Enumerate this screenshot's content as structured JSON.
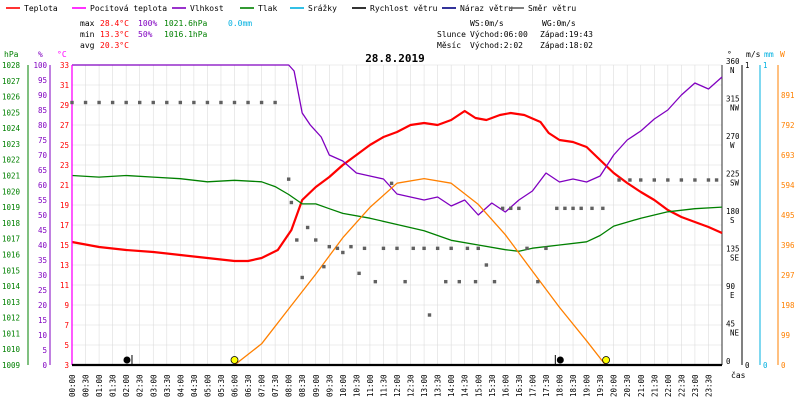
{
  "legend": [
    {
      "label": "Teplota",
      "color": "#ff0000"
    },
    {
      "label": "Pocitová teplota",
      "color": "#ff00ff"
    },
    {
      "label": "Vlhkost",
      "color": "#8000c0"
    },
    {
      "label": "Tlak",
      "color": "#008000"
    },
    {
      "label": "Srážky",
      "color": "#00b0e0"
    },
    {
      "label": "Rychlost větru",
      "color": "#000000"
    },
    {
      "label": "Náraz větru",
      "color": "#000080"
    },
    {
      "label": "Směr větru",
      "color": "#606060"
    }
  ],
  "stats": {
    "max": {
      "label": "max",
      "temp": "28.4°C",
      "hum": "100%",
      "press": "1021.6hPa",
      "rain": "0.0mm"
    },
    "min": {
      "label": "min",
      "temp": "13.3°C",
      "hum": "50%",
      "press": "1016.1hPa"
    },
    "avg": {
      "label": "avg",
      "temp": "20.3°C"
    }
  },
  "info": {
    "ws": "WS:0m/s",
    "wg": "WG:0m/s",
    "sun_label": "Slunce",
    "sun_rise": "Východ:06:00",
    "sun_set": "Západ:19:43",
    "moon_label": "Měsíc",
    "moon_rise": "Východ:2:02",
    "moon_set": "Západ:18:02"
  },
  "title": "28.8.2019",
  "units": {
    "press": "hPa",
    "hum": "%",
    "temp": "°C",
    "dir": "°",
    "wind": "m/s",
    "rain": "mm",
    "solar": "W",
    "time": "čas"
  },
  "colors": {
    "temp": "#ff0000",
    "feels": "#ff00ff",
    "hum": "#8000c0",
    "press": "#008000",
    "rain": "#00b0e0",
    "wind": "#000000",
    "dir": "#606060",
    "solar": "#ff8000",
    "grid": "#dcdcdc",
    "sun": "#ffff00"
  },
  "axes": {
    "pressure": {
      "min": 1009,
      "max": 1028,
      "ticks": [
        1009,
        1010,
        1011,
        1012,
        1013,
        1014,
        1015,
        1016,
        1017,
        1018,
        1019,
        1020,
        1021,
        1022,
        1023,
        1024,
        1025,
        1026,
        1027,
        1028
      ]
    },
    "humidity": {
      "min": 0,
      "max": 100,
      "ticks": [
        0,
        5,
        10,
        15,
        20,
        25,
        30,
        35,
        40,
        45,
        50,
        55,
        60,
        65,
        70,
        75,
        80,
        85,
        90,
        95,
        100
      ]
    },
    "temperature": {
      "min": 3,
      "max": 33,
      "ticks": [
        3,
        5,
        7,
        9,
        11,
        13,
        15,
        17,
        19,
        21,
        23,
        25,
        27,
        29,
        31,
        33
      ]
    },
    "direction": {
      "min": 0,
      "max": 360,
      "ticks": [
        {
          "v": 0,
          "l": "0"
        },
        {
          "v": 45,
          "l": "45"
        },
        {
          "v": 90,
          "l": "90"
        },
        {
          "v": 135,
          "l": "135"
        },
        {
          "v": 180,
          "l": "180"
        },
        {
          "v": 225,
          "l": "225"
        },
        {
          "v": 270,
          "l": "270"
        },
        {
          "v": 315,
          "l": "315"
        },
        {
          "v": 360,
          "l": "360"
        }
      ],
      "compass": [
        {
          "v": 45,
          "l": "NE"
        },
        {
          "v": 90,
          "l": "E"
        },
        {
          "v": 135,
          "l": "SE"
        },
        {
          "v": 180,
          "l": "S"
        },
        {
          "v": 225,
          "l": "SW"
        },
        {
          "v": 270,
          "l": "W"
        },
        {
          "v": 315,
          "l": "NW"
        },
        {
          "v": 360,
          "l": "N"
        }
      ]
    },
    "wind": {
      "min": 0,
      "max": 1,
      "ticks": [
        0,
        1
      ]
    },
    "rain": {
      "min": 0,
      "max": 1,
      "ticks": [
        0,
        1
      ]
    },
    "solar": {
      "min": 0,
      "max": 990,
      "ticks": [
        0,
        99,
        198,
        297,
        396,
        495,
        594,
        693,
        792,
        891
      ]
    },
    "x_labels": [
      "00:00",
      "00:30",
      "01:00",
      "01:30",
      "02:00",
      "02:30",
      "03:00",
      "03:30",
      "04:00",
      "04:30",
      "05:00",
      "05:30",
      "06:00",
      "06:30",
      "07:00",
      "07:30",
      "08:00",
      "08:30",
      "09:00",
      "09:30",
      "10:00",
      "10:30",
      "11:00",
      "11:30",
      "12:00",
      "12:30",
      "13:00",
      "13:30",
      "14:00",
      "14:30",
      "15:00",
      "15:30",
      "16:00",
      "16:30",
      "17:00",
      "17:30",
      "18:00",
      "18:30",
      "19:00",
      "19:30",
      "20:00",
      "20:30",
      "21:00",
      "21:30",
      "22:00",
      "22:30",
      "23:00",
      "23:30"
    ]
  },
  "chart_data": {
    "type": "line",
    "title": "28.8.2019",
    "x_unit": "hours",
    "series": [
      {
        "name": "Teplota",
        "axis": "temperature",
        "points": [
          [
            0,
            15.3
          ],
          [
            1,
            14.8
          ],
          [
            2,
            14.5
          ],
          [
            3,
            14.3
          ],
          [
            4,
            14.0
          ],
          [
            5,
            13.7
          ],
          [
            6,
            13.4
          ],
          [
            6.5,
            13.4
          ],
          [
            7,
            13.7
          ],
          [
            7.6,
            14.5
          ],
          [
            8.1,
            16.5
          ],
          [
            8.5,
            19.5
          ],
          [
            9,
            20.8
          ],
          [
            9.5,
            21.8
          ],
          [
            10,
            23.0
          ],
          [
            10.5,
            24.0
          ],
          [
            11,
            25.0
          ],
          [
            11.5,
            25.8
          ],
          [
            12,
            26.3
          ],
          [
            12.5,
            27.0
          ],
          [
            13,
            27.2
          ],
          [
            13.5,
            27.0
          ],
          [
            14,
            27.5
          ],
          [
            14.5,
            28.4
          ],
          [
            14.9,
            27.7
          ],
          [
            15.3,
            27.5
          ],
          [
            15.8,
            28.0
          ],
          [
            16.2,
            28.2
          ],
          [
            16.7,
            28.0
          ],
          [
            17.3,
            27.3
          ],
          [
            17.6,
            26.2
          ],
          [
            18,
            25.5
          ],
          [
            18.5,
            25.3
          ],
          [
            19,
            24.8
          ],
          [
            19.5,
            23.5
          ],
          [
            20,
            22.2
          ],
          [
            20.5,
            21.2
          ],
          [
            21,
            20.3
          ],
          [
            21.5,
            19.5
          ],
          [
            22,
            18.5
          ],
          [
            22.5,
            17.8
          ],
          [
            23,
            17.3
          ],
          [
            23.5,
            16.8
          ],
          [
            24,
            16.2
          ]
        ]
      },
      {
        "name": "Vlhkost",
        "axis": "humidity",
        "points": [
          [
            0,
            100
          ],
          [
            8,
            100
          ],
          [
            8.2,
            98
          ],
          [
            8.5,
            84
          ],
          [
            8.8,
            80
          ],
          [
            9.2,
            76
          ],
          [
            9.5,
            70
          ],
          [
            10,
            68
          ],
          [
            10.5,
            64
          ],
          [
            11,
            63
          ],
          [
            11.5,
            62
          ],
          [
            12,
            57
          ],
          [
            12.5,
            56
          ],
          [
            13,
            55
          ],
          [
            13.5,
            56
          ],
          [
            14,
            53
          ],
          [
            14.5,
            55
          ],
          [
            15,
            50
          ],
          [
            15.5,
            54
          ],
          [
            16,
            51
          ],
          [
            16.5,
            55
          ],
          [
            17,
            58
          ],
          [
            17.5,
            64
          ],
          [
            18,
            61
          ],
          [
            18.5,
            62
          ],
          [
            19,
            61
          ],
          [
            19.5,
            63
          ],
          [
            20,
            70
          ],
          [
            20.5,
            75
          ],
          [
            21,
            78
          ],
          [
            21.5,
            82
          ],
          [
            22,
            85
          ],
          [
            22.5,
            90
          ],
          [
            23,
            94
          ],
          [
            23.5,
            92
          ],
          [
            24,
            96
          ]
        ]
      },
      {
        "name": "Tlak",
        "axis": "pressure",
        "points": [
          [
            0,
            1021.0
          ],
          [
            1,
            1020.9
          ],
          [
            2,
            1021.0
          ],
          [
            3,
            1020.9
          ],
          [
            4,
            1020.8
          ],
          [
            5,
            1020.6
          ],
          [
            6,
            1020.7
          ],
          [
            7,
            1020.6
          ],
          [
            7.5,
            1020.3
          ],
          [
            8,
            1019.8
          ],
          [
            8.5,
            1019.2
          ],
          [
            9,
            1019.2
          ],
          [
            9.5,
            1018.9
          ],
          [
            10,
            1018.6
          ],
          [
            11,
            1018.3
          ],
          [
            12,
            1017.9
          ],
          [
            13,
            1017.5
          ],
          [
            14,
            1016.9
          ],
          [
            15,
            1016.6
          ],
          [
            16,
            1016.3
          ],
          [
            16.5,
            1016.2
          ],
          [
            17,
            1016.4
          ],
          [
            18,
            1016.6
          ],
          [
            19,
            1016.8
          ],
          [
            19.5,
            1017.2
          ],
          [
            20,
            1017.8
          ],
          [
            21,
            1018.3
          ],
          [
            22,
            1018.7
          ],
          [
            23,
            1018.9
          ],
          [
            24,
            1019.0
          ]
        ]
      },
      {
        "name": "Pocitová teplota",
        "axis": "temperature",
        "points": [
          [
            0,
            3
          ],
          [
            0,
            33
          ]
        ]
      },
      {
        "name": "Solar",
        "axis": "solar",
        "points": [
          [
            6,
            0
          ],
          [
            7,
            70
          ],
          [
            8,
            185
          ],
          [
            9,
            300
          ],
          [
            10,
            420
          ],
          [
            11,
            520
          ],
          [
            12,
            600
          ],
          [
            13,
            615
          ],
          [
            14,
            600
          ],
          [
            15,
            530
          ],
          [
            16,
            430
          ],
          [
            17,
            310
          ],
          [
            18,
            190
          ],
          [
            19,
            80
          ],
          [
            19.7,
            0
          ]
        ]
      },
      {
        "name": "Směr větru",
        "axis": "direction",
        "kind": "dots",
        "points": [
          [
            0,
            315
          ],
          [
            0.5,
            315
          ],
          [
            1,
            315
          ],
          [
            1.5,
            315
          ],
          [
            2,
            315
          ],
          [
            2.5,
            315
          ],
          [
            3,
            315
          ],
          [
            3.5,
            315
          ],
          [
            4,
            315
          ],
          [
            4.5,
            315
          ],
          [
            5,
            315
          ],
          [
            5.5,
            315
          ],
          [
            6,
            315
          ],
          [
            6.5,
            315
          ],
          [
            7,
            315
          ],
          [
            7.5,
            315
          ],
          [
            8,
            223
          ],
          [
            8.1,
            195
          ],
          [
            8.3,
            150
          ],
          [
            8.5,
            105
          ],
          [
            8.7,
            165
          ],
          [
            9,
            150
          ],
          [
            9.3,
            118
          ],
          [
            9.5,
            142
          ],
          [
            9.8,
            140
          ],
          [
            10,
            135
          ],
          [
            10.3,
            142
          ],
          [
            10.6,
            110
          ],
          [
            10.8,
            140
          ],
          [
            11.2,
            100
          ],
          [
            11.5,
            140
          ],
          [
            11.8,
            218
          ],
          [
            12,
            140
          ],
          [
            12.3,
            100
          ],
          [
            12.6,
            140
          ],
          [
            13,
            140
          ],
          [
            13.2,
            60
          ],
          [
            13.5,
            140
          ],
          [
            13.8,
            100
          ],
          [
            14,
            140
          ],
          [
            14.3,
            100
          ],
          [
            14.6,
            140
          ],
          [
            14.9,
            100
          ],
          [
            15,
            140
          ],
          [
            15.3,
            120
          ],
          [
            15.6,
            100
          ],
          [
            15.9,
            188
          ],
          [
            16.2,
            188
          ],
          [
            16.5,
            188
          ],
          [
            16.8,
            140
          ],
          [
            17.2,
            100
          ],
          [
            17.5,
            140
          ],
          [
            17.9,
            188
          ],
          [
            18.2,
            188
          ],
          [
            18.5,
            188
          ],
          [
            18.8,
            188
          ],
          [
            19.2,
            188
          ],
          [
            19.6,
            188
          ],
          [
            20.2,
            222
          ],
          [
            20.6,
            222
          ],
          [
            21,
            222
          ],
          [
            21.5,
            222
          ],
          [
            22,
            222
          ],
          [
            22.5,
            222
          ],
          [
            23,
            222
          ],
          [
            23.5,
            222
          ],
          [
            23.8,
            222
          ]
        ]
      },
      {
        "name": "Rychlost větru",
        "axis": "wind",
        "points": [
          [
            0,
            0
          ],
          [
            24,
            0
          ]
        ]
      }
    ],
    "markers": {
      "sun": [
        6.0,
        19.72
      ],
      "moon": [
        2.03,
        18.03
      ]
    }
  }
}
